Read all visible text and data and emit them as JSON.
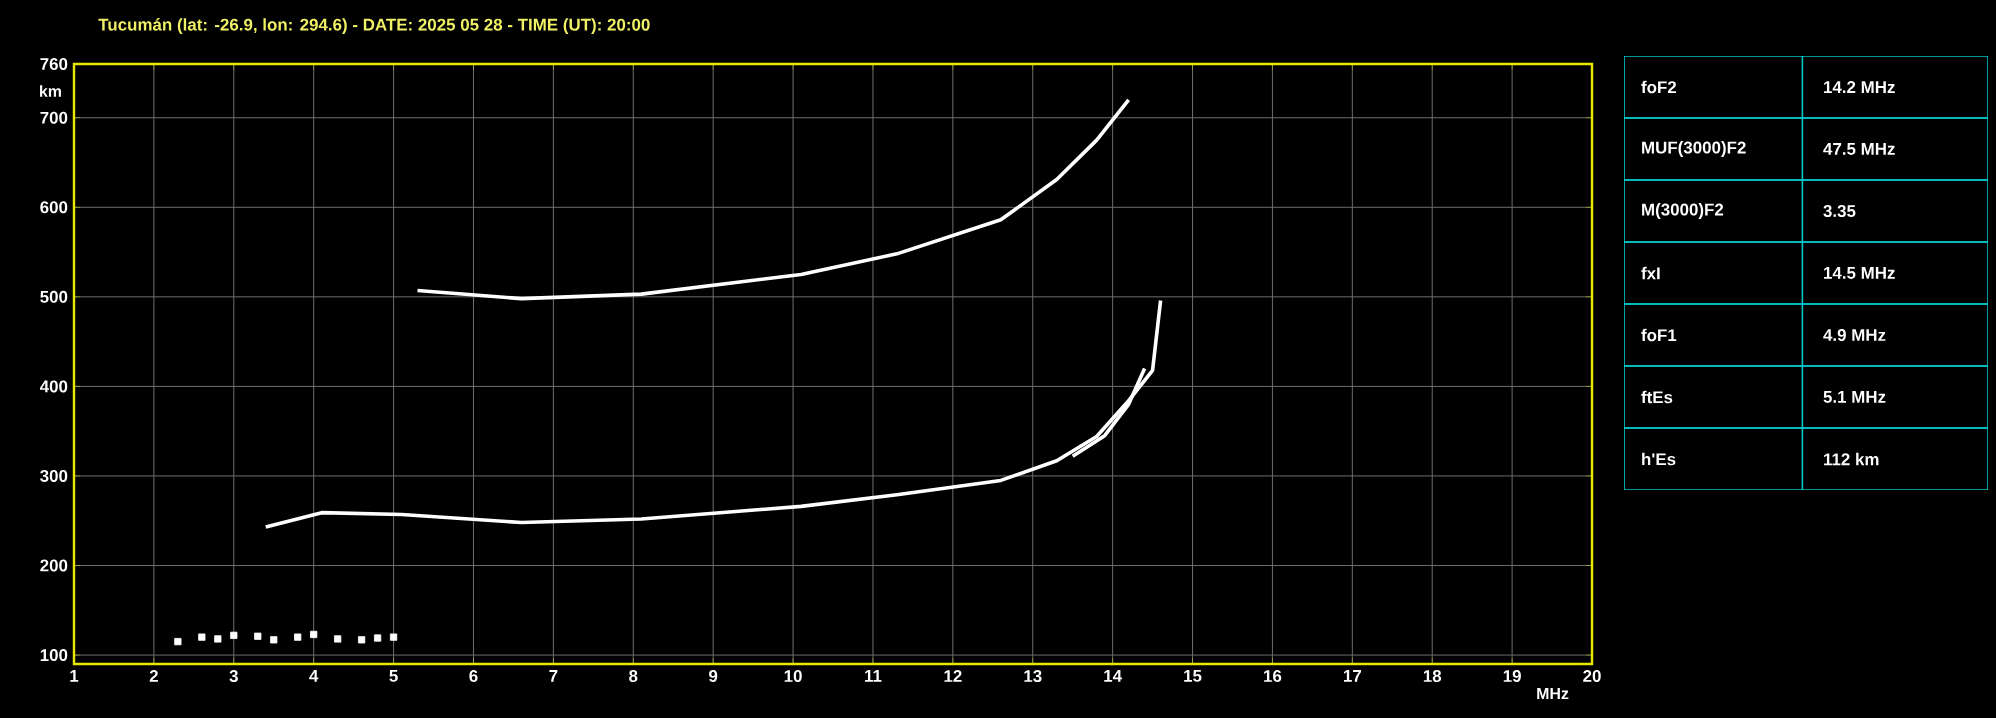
{
  "chart_data": [
    {
      "type": "line",
      "title": "Tucumán (lat: -26.9, lon: 294.6) - DATE: 2025 05 28 - TIME (UT): 20:00",
      "xlabel": "MHz",
      "ylabel": "km",
      "xlim": [
        1,
        20
      ],
      "ylim": [
        90,
        760
      ],
      "xticks": [
        1,
        2,
        3,
        4,
        5,
        6,
        7,
        8,
        9,
        10,
        11,
        12,
        13,
        14,
        15,
        16,
        17,
        18,
        19,
        20
      ],
      "yticks": [
        100,
        200,
        300,
        400,
        500,
        600,
        700,
        760
      ],
      "grid": true,
      "series": [
        {
          "color": "#ffffff",
          "x": [
            3.4,
            4.1,
            5.1,
            6.6,
            8.1,
            10.1,
            11.3,
            12.6,
            13.3,
            13.8,
            14.2,
            14.5,
            14.6
          ],
          "values": [
            243,
            259,
            257,
            248,
            252,
            266,
            279,
            295,
            317,
            344,
            384,
            418,
            496
          ]
        },
        {
          "color": "#ffffff",
          "x": [
            13.5,
            13.9,
            14.2,
            14.4
          ],
          "values": [
            322,
            345,
            380,
            420
          ]
        },
        {
          "color": "#ffffff",
          "x": [
            5.3,
            6.6,
            8.1,
            10.1,
            11.3,
            12.6,
            13.3,
            13.8,
            14.2
          ],
          "values": [
            507,
            498,
            503,
            525,
            548,
            586,
            631,
            675,
            720
          ]
        },
        {
          "type": "scatter",
          "marker": "square",
          "color": "#ffffff",
          "x": [
            2.3,
            2.6,
            2.8,
            3.0,
            3.3,
            3.5,
            3.8,
            4.0,
            4.3,
            4.6,
            4.8,
            5.0
          ],
          "values": [
            115,
            120,
            118,
            122,
            121,
            117,
            120,
            123,
            118,
            117,
            119,
            120
          ]
        }
      ]
    },
    {
      "type": "other",
      "categories": [
        "foF2",
        "MUF(3000)F2",
        "M(3000)F2",
        "fxI",
        "foF1",
        "ftEs",
        "h'Es"
      ],
      "annotations": [
        "14.2 MHz",
        "47.5 MHz",
        "3.35",
        "14.5 MHz",
        "4.9 MHz",
        "5.1 MHz",
        "112 km"
      ]
    }
  ]
}
